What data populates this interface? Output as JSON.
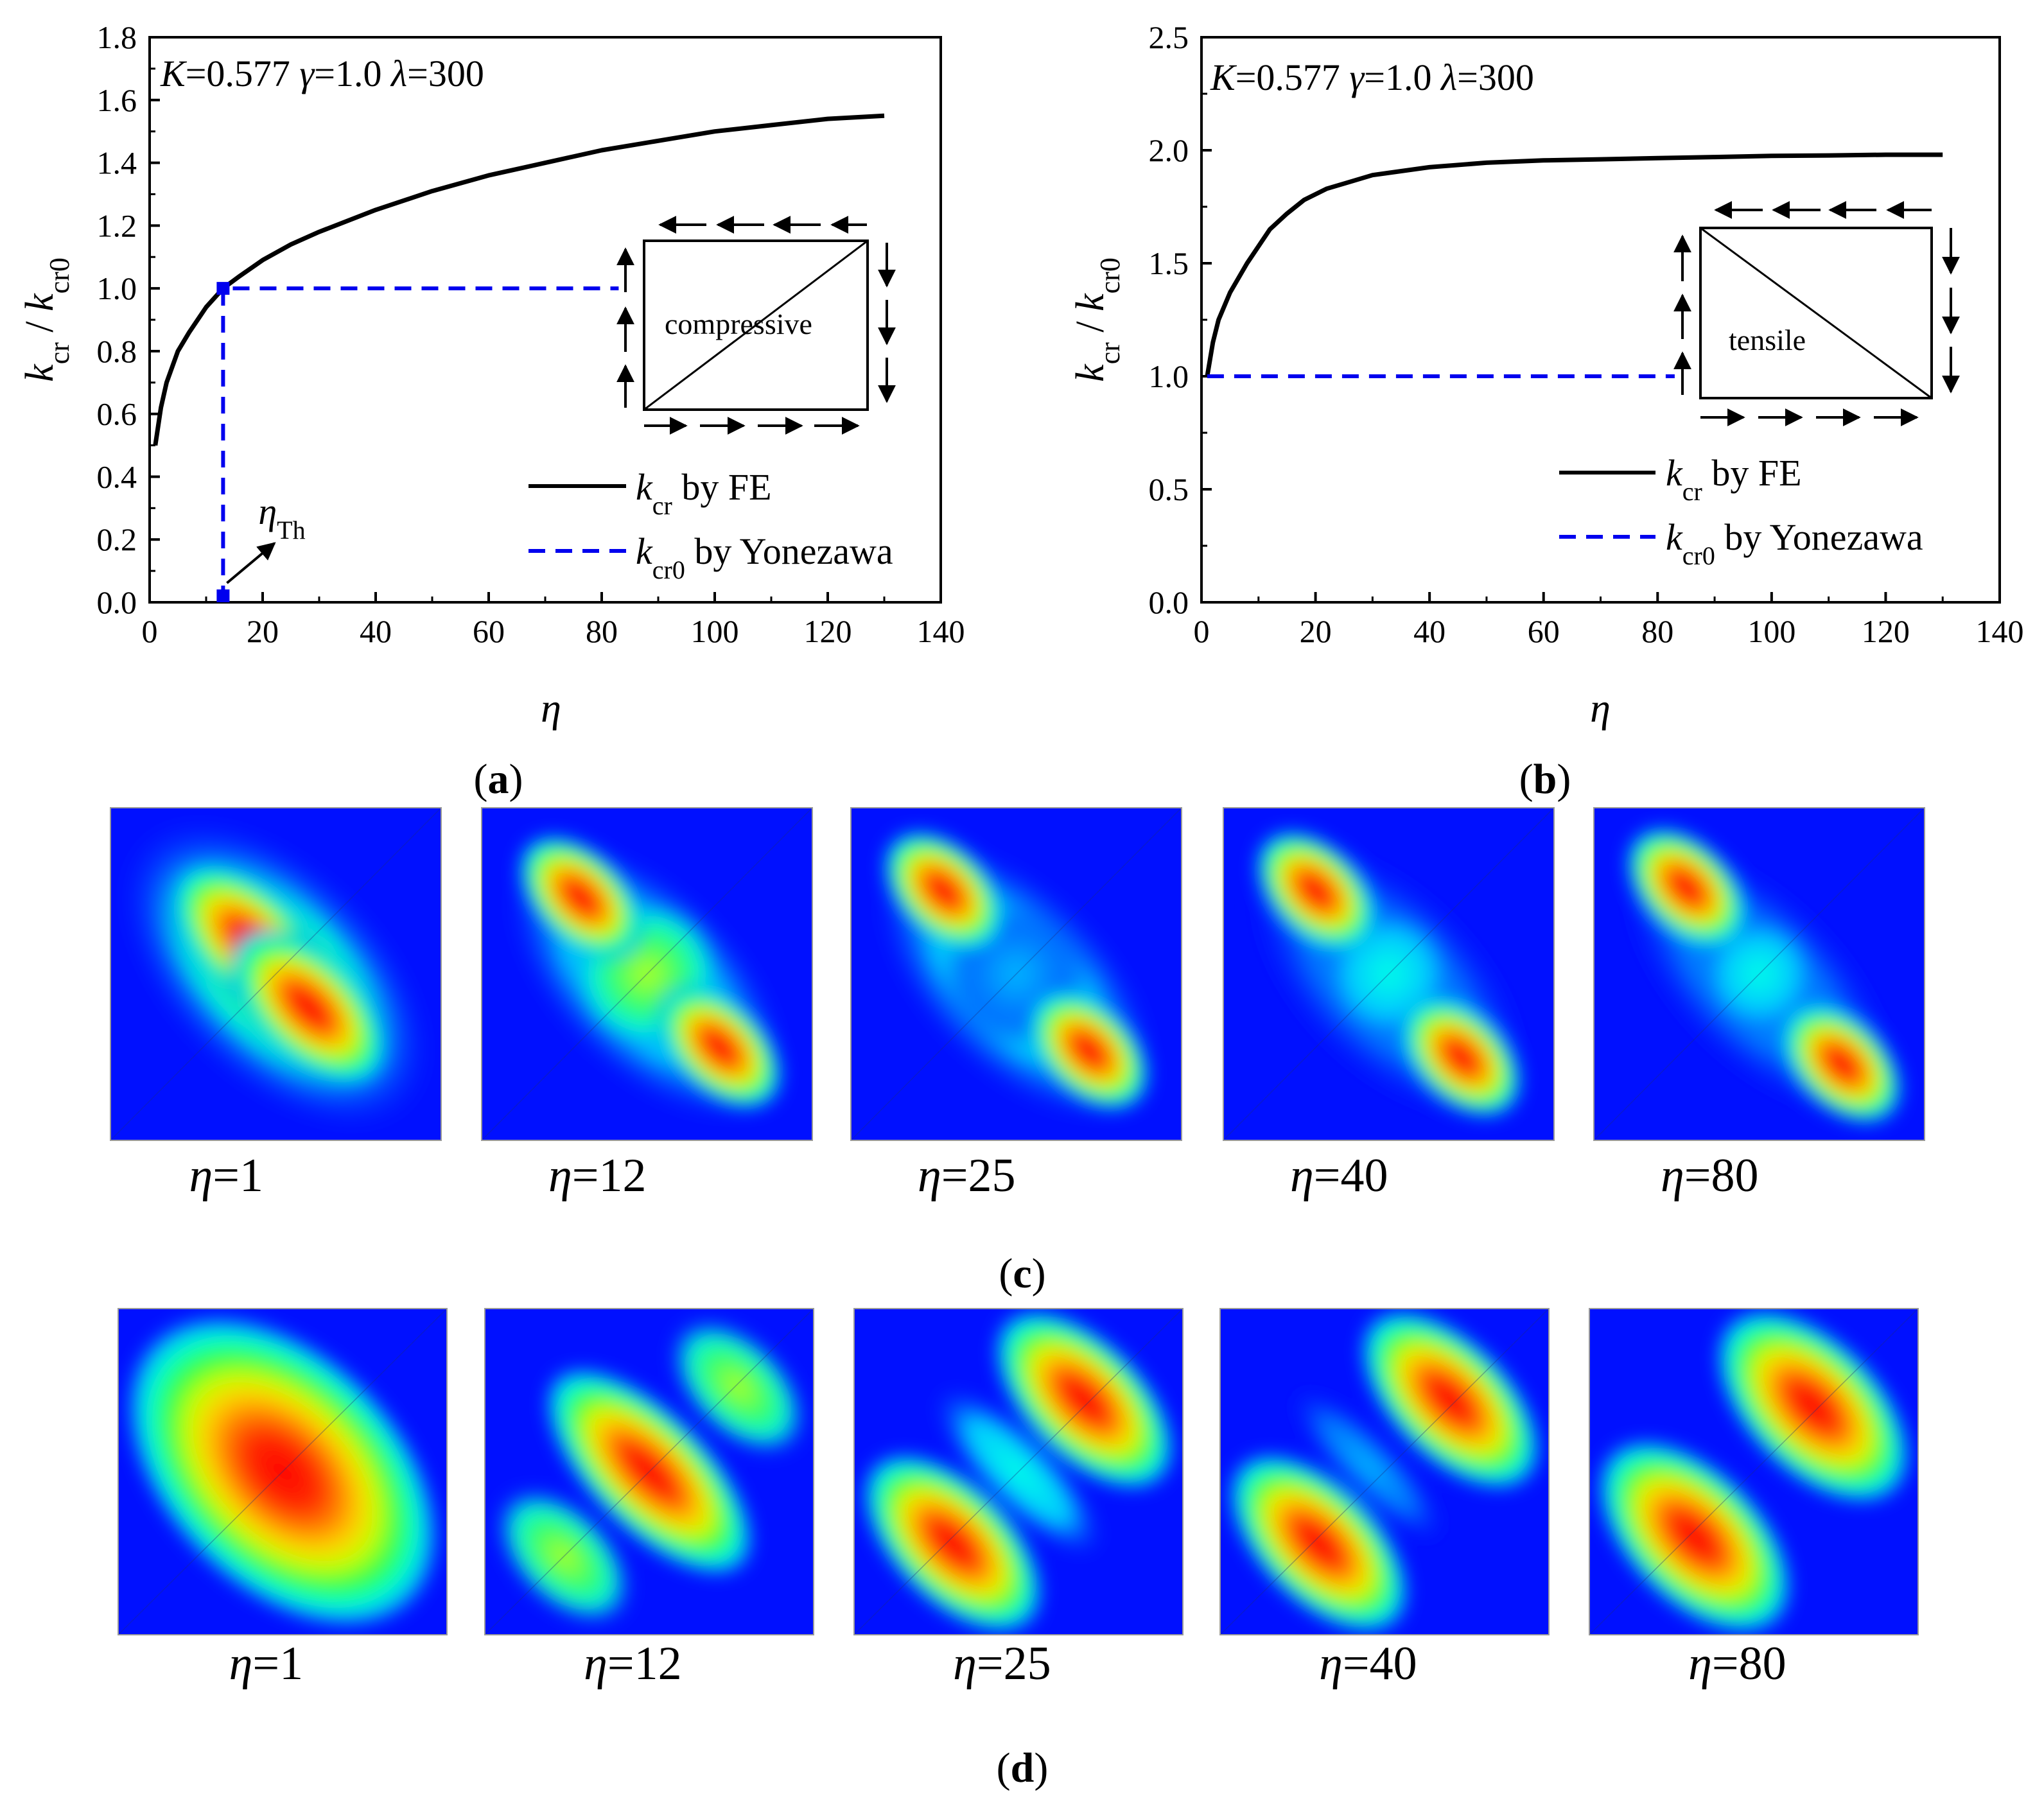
{
  "figure": {
    "panel_labels": {
      "a": "(a)",
      "b": "(b)",
      "c": "(c)",
      "d": "(d)"
    },
    "colors": {
      "fe_line": "#000000",
      "yonezawa_line": "#0000ee",
      "contour_bg": "#0010ff",
      "contour_peak": "#ff0000"
    }
  },
  "chart_data": [
    {
      "id": "a",
      "type": "line",
      "title": {
        "K_var": "K",
        "K_val": "=0.577 ",
        "g_var": "γ",
        "g_val": "=1.0 ",
        "l_var": "λ",
        "l_val": "=300"
      },
      "xlabel": "η",
      "ylabel": {
        "k": "k",
        "cr": "cr",
        "slash": " / ",
        "k2": "k",
        "cr0": "cr0"
      },
      "xlim": [
        0,
        140
      ],
      "ylim": [
        0,
        1.8
      ],
      "xticks": [
        "0",
        "20",
        "40",
        "60",
        "80",
        "100",
        "120",
        "140"
      ],
      "yticks": [
        "0.0",
        "0.2",
        "0.4",
        "0.6",
        "0.8",
        "1.0",
        "1.2",
        "1.4",
        "1.6",
        "1.8"
      ],
      "series": [
        {
          "name": "kcr by FE",
          "x": [
            1,
            2,
            3,
            5,
            7,
            10,
            13,
            16,
            20,
            25,
            30,
            40,
            50,
            60,
            70,
            80,
            90,
            100,
            110,
            120,
            130
          ],
          "y": [
            0.5,
            0.62,
            0.7,
            0.8,
            0.86,
            0.94,
            1.0,
            1.04,
            1.09,
            1.14,
            1.18,
            1.25,
            1.31,
            1.36,
            1.4,
            1.44,
            1.47,
            1.5,
            1.52,
            1.54,
            1.55
          ]
        },
        {
          "name": "kcr0 by Yonezawa",
          "x": [
            13,
            13,
            83
          ],
          "y": [
            0,
            1.0,
            1.0
          ]
        }
      ],
      "legend": [
        {
          "k": "k",
          "sub": "cr",
          "text": " by FE",
          "style": "solid"
        },
        {
          "k": "k",
          "sub": "cr0",
          "text": " by Yonezawa",
          "style": "dashed"
        }
      ],
      "annotation": {
        "eta": "η",
        "sub": "Th",
        "x": 13,
        "y": 0
      },
      "inset_label": "compressive"
    },
    {
      "id": "b",
      "type": "line",
      "title": {
        "K_var": "K",
        "K_val": "=0.577 ",
        "g_var": "γ",
        "g_val": "=1.0 ",
        "l_var": "λ",
        "l_val": "=300"
      },
      "xlabel": "η",
      "ylabel": {
        "k": "k",
        "cr": "cr",
        "slash": " / ",
        "k2": "k",
        "cr0": "cr0"
      },
      "xlim": [
        0,
        140
      ],
      "ylim": [
        0,
        2.5
      ],
      "xticks": [
        "0",
        "20",
        "40",
        "60",
        "80",
        "100",
        "120",
        "140"
      ],
      "yticks": [
        "0.0",
        "0.5",
        "1.0",
        "1.5",
        "2.0",
        "2.5"
      ],
      "series": [
        {
          "name": "kcr by FE",
          "x": [
            1,
            2,
            3,
            5,
            8,
            12,
            15,
            18,
            22,
            26,
            30,
            40,
            50,
            60,
            70,
            80,
            90,
            100,
            110,
            120,
            130
          ],
          "y": [
            1.0,
            1.15,
            1.25,
            1.37,
            1.5,
            1.65,
            1.72,
            1.78,
            1.83,
            1.86,
            1.89,
            1.925,
            1.945,
            1.955,
            1.96,
            1.965,
            1.97,
            1.975,
            1.977,
            1.98,
            1.98
          ]
        },
        {
          "name": "kcr0 by Yonezawa",
          "x": [
            1,
            83
          ],
          "y": [
            1.0,
            1.0
          ]
        }
      ],
      "legend": [
        {
          "k": "k",
          "sub": "cr",
          "text": " by FE",
          "style": "solid"
        },
        {
          "k": "k",
          "sub": "cr0",
          "text": " by Yonezawa",
          "style": "dashed"
        }
      ],
      "inset_label": "tensile"
    },
    {
      "id": "c",
      "type": "heatmap",
      "panels": [
        {
          "eta": "η",
          "value": "=1"
        },
        {
          "eta": "η",
          "value": "=12"
        },
        {
          "eta": "η",
          "value": "=25"
        },
        {
          "eta": "η",
          "value": "=40"
        },
        {
          "eta": "η",
          "value": "=80"
        }
      ]
    },
    {
      "id": "d",
      "type": "heatmap",
      "panels": [
        {
          "eta": "η",
          "value": "=1"
        },
        {
          "eta": "η",
          "value": "=12"
        },
        {
          "eta": "η",
          "value": "=25"
        },
        {
          "eta": "η",
          "value": "=40"
        },
        {
          "eta": "η",
          "value": "=80"
        }
      ]
    }
  ]
}
